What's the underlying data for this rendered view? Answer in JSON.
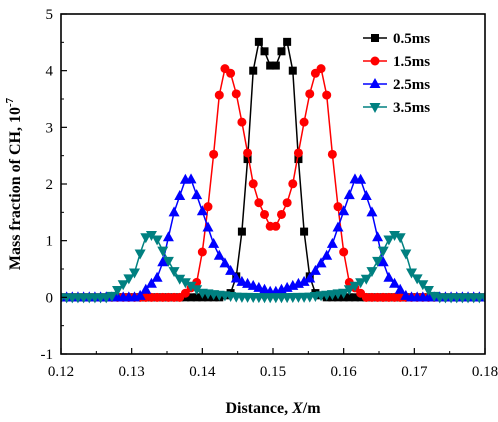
{
  "chart_data": {
    "type": "line",
    "xlabel_prefix": "Distance, ",
    "xlabel_var": "X",
    "xlabel_suffix": "/m",
    "ylabel_main": "Mass fraction of CH, 10",
    "ylabel_exp": "-7",
    "xlim": [
      0.12,
      0.18
    ],
    "ylim": [
      -1,
      5
    ],
    "xticks": [
      "0.12",
      "0.13",
      "0.14",
      "0.15",
      "0.16",
      "0.17",
      "0.18"
    ],
    "yticks": [
      "-1",
      "0",
      "1",
      "2",
      "3",
      "4",
      "5"
    ],
    "legend_position": "top-right",
    "series": [
      {
        "name": "0.5ms",
        "color": "#000000",
        "marker": "square",
        "x": [
          0.12,
          0.1425,
          0.1445,
          0.1455,
          0.1465,
          0.1472,
          0.1478,
          0.149,
          0.15,
          0.151,
          0.1522,
          0.1528,
          0.1535,
          0.1545,
          0.1555,
          0.1575,
          0.18
        ],
        "y": [
          0,
          0,
          0.1,
          1.0,
          2.6,
          4.0,
          4.55,
          4.3,
          3.95,
          4.3,
          4.55,
          4.0,
          2.6,
          1.0,
          0.1,
          0,
          0
        ]
      },
      {
        "name": "1.5ms",
        "color": "#ff0000",
        "marker": "circle",
        "x": [
          0.12,
          0.137,
          0.1395,
          0.1412,
          0.1425,
          0.1435,
          0.145,
          0.1475,
          0.15,
          0.1525,
          0.155,
          0.1565,
          0.1575,
          0.1588,
          0.1605,
          0.163,
          0.18
        ],
        "y": [
          0,
          0,
          0.3,
          2.0,
          3.7,
          4.18,
          3.5,
          1.8,
          1.15,
          1.8,
          3.5,
          4.18,
          3.7,
          2.0,
          0.3,
          0,
          0
        ]
      },
      {
        "name": "2.5ms",
        "color": "#0000ff",
        "marker": "triangle-up",
        "x": [
          0.12,
          0.131,
          0.134,
          0.136,
          0.138,
          0.1395,
          0.142,
          0.145,
          0.15,
          0.155,
          0.158,
          0.1605,
          0.162,
          0.164,
          0.166,
          0.169,
          0.18
        ],
        "y": [
          0,
          0,
          0.4,
          1.5,
          2.22,
          1.7,
          0.8,
          0.3,
          0.08,
          0.3,
          0.8,
          1.7,
          2.22,
          1.5,
          0.4,
          0,
          0
        ]
      },
      {
        "name": "3.5ms",
        "color": "#008080",
        "marker": "triangle-down",
        "x": [
          0.12,
          0.127,
          0.1305,
          0.1318,
          0.1332,
          0.1345,
          0.1365,
          0.14,
          0.145,
          0.15,
          0.155,
          0.16,
          0.1635,
          0.1655,
          0.1668,
          0.1682,
          0.1695,
          0.173,
          0.18
        ],
        "y": [
          0,
          0,
          0.45,
          1.05,
          1.12,
          0.8,
          0.35,
          0.08,
          0.01,
          0,
          0.01,
          0.08,
          0.35,
          0.8,
          1.12,
          1.05,
          0.45,
          0,
          0
        ]
      }
    ]
  }
}
